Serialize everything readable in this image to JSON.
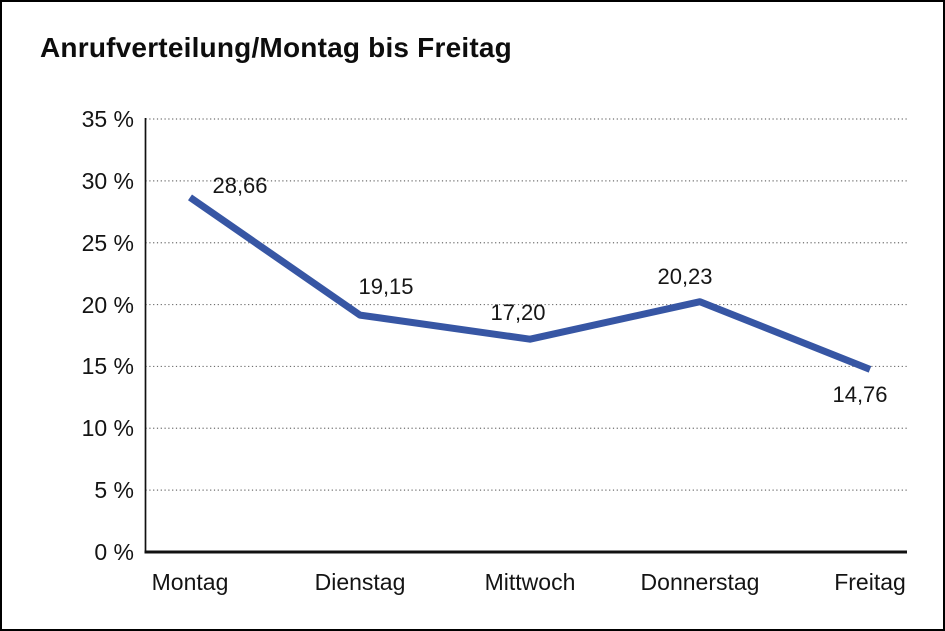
{
  "window": {
    "background": "#ffffff",
    "border_color": "#000000"
  },
  "chart_data": {
    "type": "line",
    "title": "Anrufverteilung/Montag bis Freitag",
    "categories": [
      "Montag",
      "Dienstag",
      "Mittwoch",
      "Donnerstag",
      "Freitag"
    ],
    "series": [
      {
        "name": "Anrufverteilung",
        "values": [
          28.66,
          19.15,
          17.2,
          20.23,
          14.76
        ]
      }
    ],
    "data_labels": [
      "28,66",
      "19,15",
      "17,20",
      "20,23",
      "14,76"
    ],
    "y_ticks": [
      "0 %",
      "5 %",
      "10 %",
      "15 %",
      "20 %",
      "25 %",
      "30 %",
      "35 %"
    ],
    "y_tick_values": [
      0,
      5,
      10,
      15,
      20,
      25,
      30,
      35
    ],
    "ylim": [
      0,
      35
    ],
    "xlabel": "",
    "ylabel": "",
    "legend": "none",
    "grid": "horizontal-dotted",
    "line_color": "#3756a4",
    "axis_color": "#111111",
    "grid_color": "#6e6e6e",
    "text_color": "#141414"
  }
}
